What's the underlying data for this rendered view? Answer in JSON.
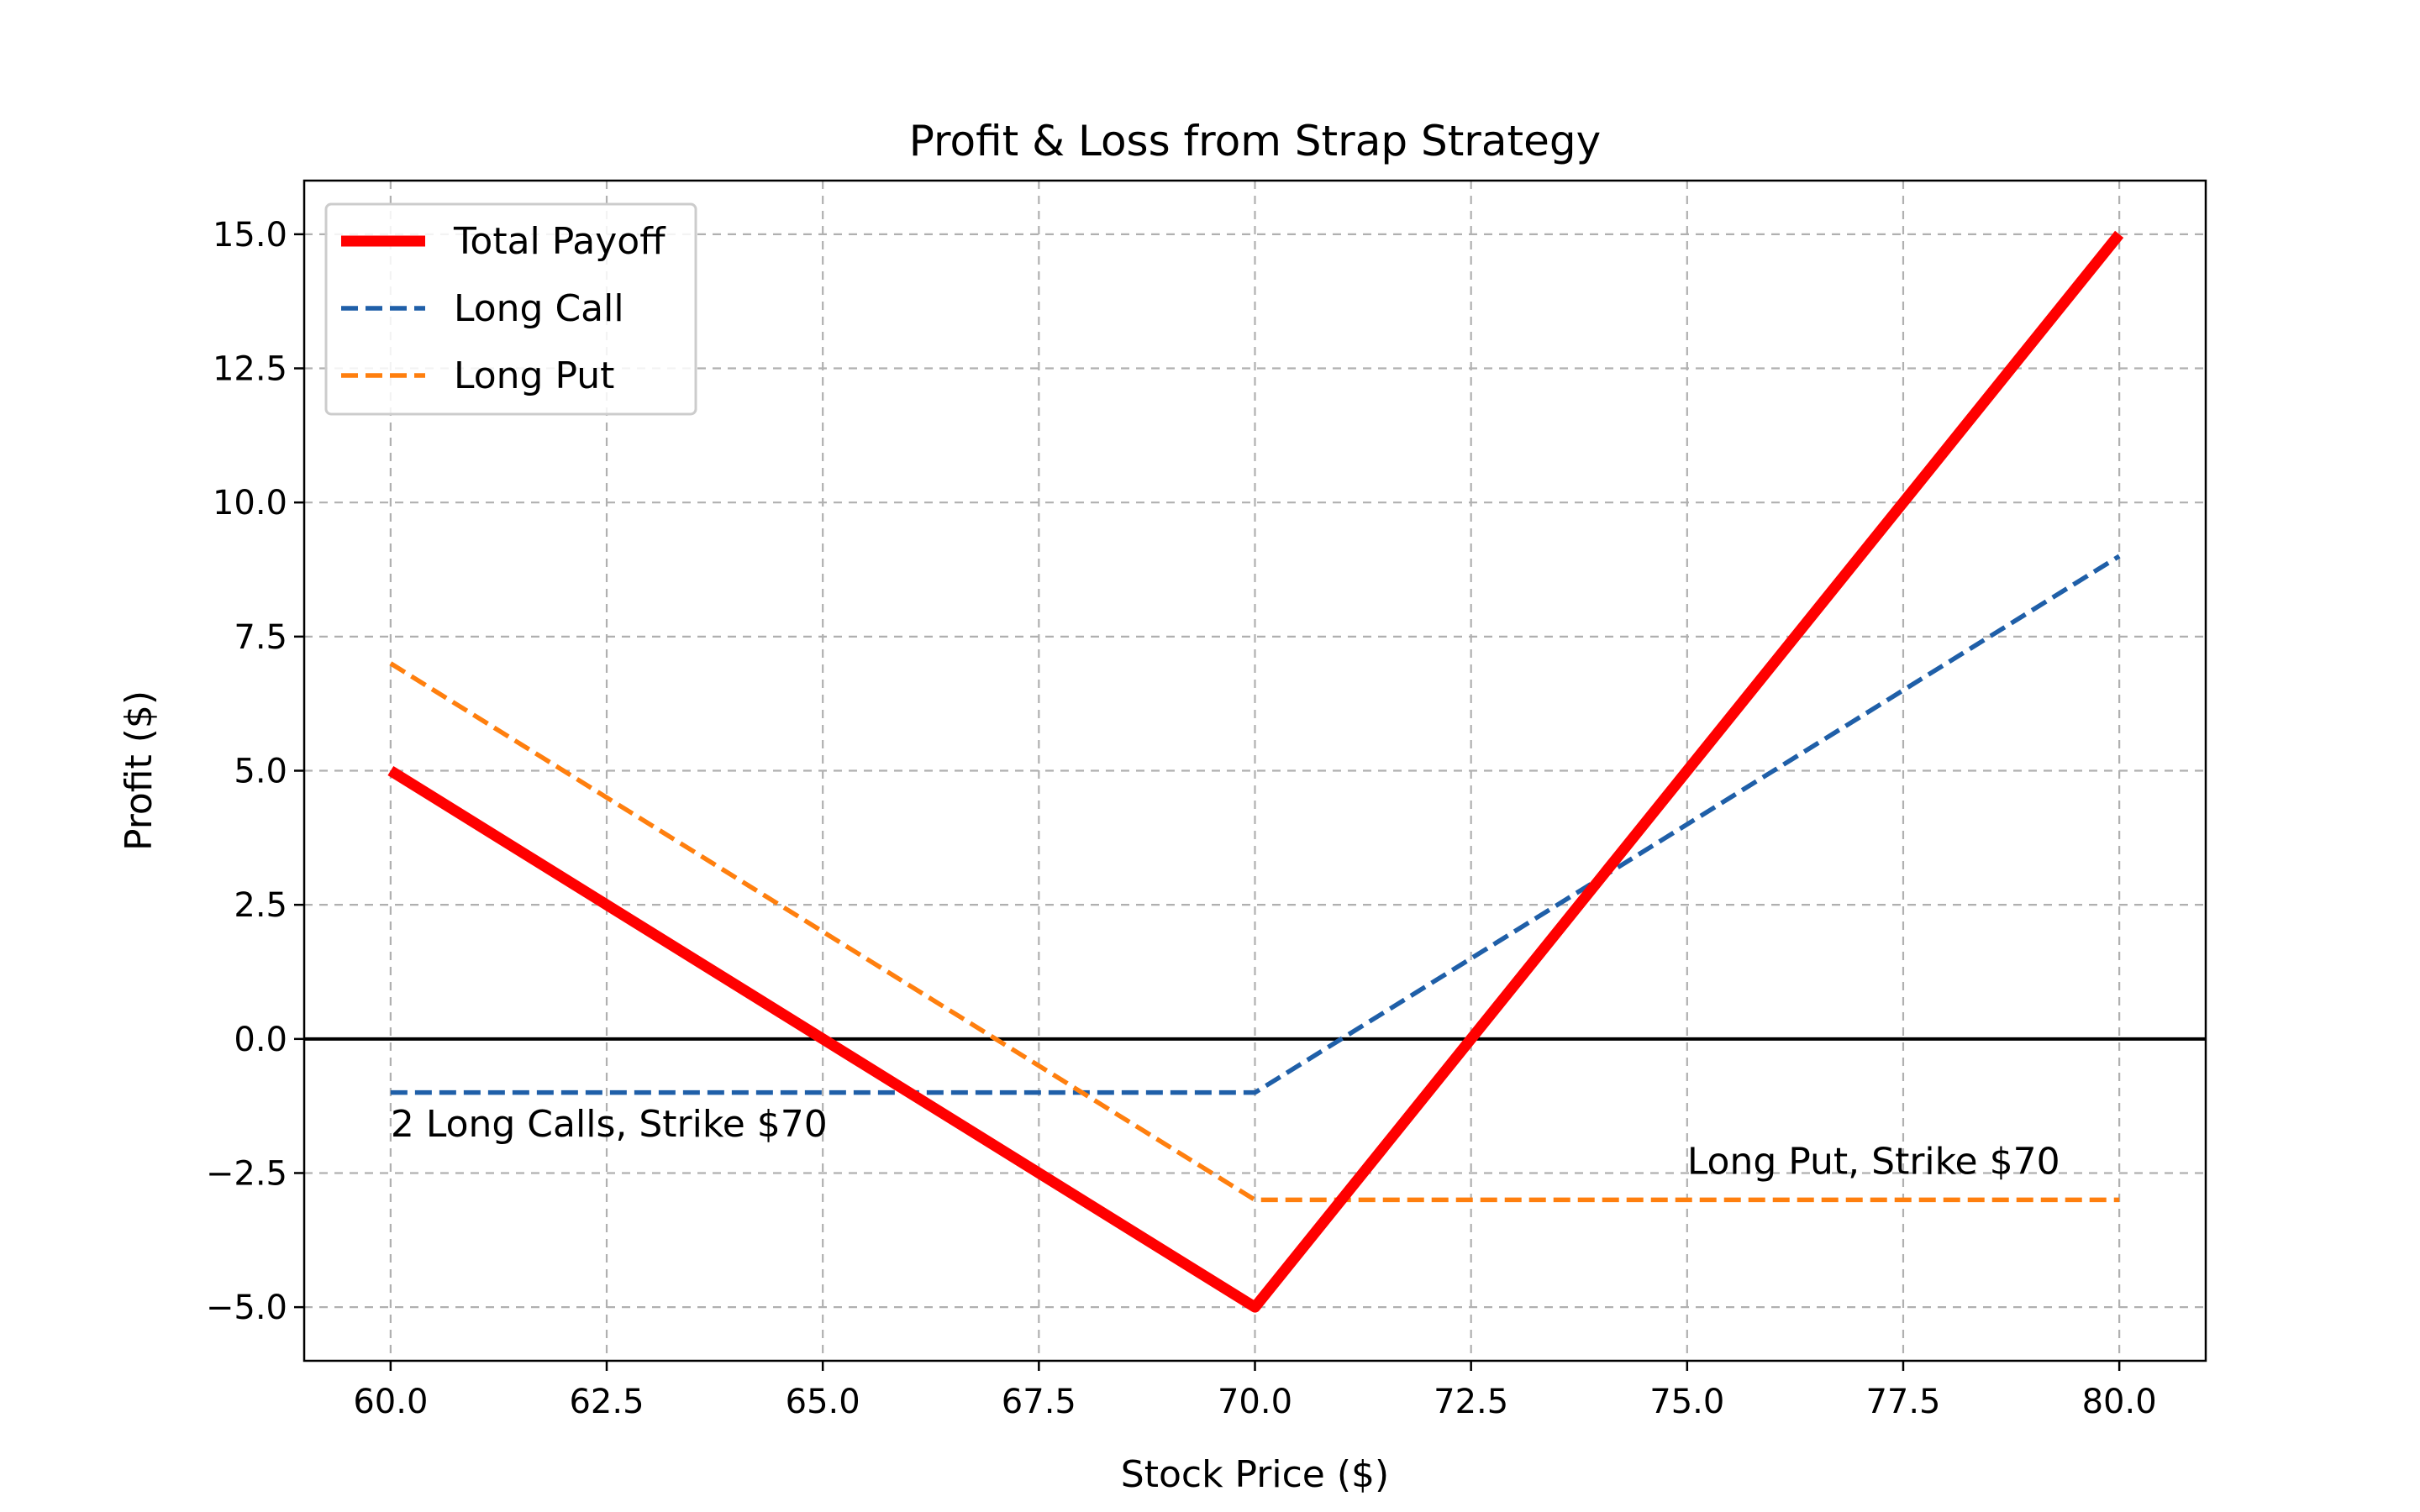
{
  "chart_data": {
    "type": "line",
    "title": "Profit & Loss from Strap Strategy",
    "xlabel": "Stock Price ($)",
    "ylabel": "Profit ($)",
    "xlim": [
      59,
      81
    ],
    "ylim": [
      -6,
      16
    ],
    "grid": true,
    "legend_position": "top-left",
    "xticks": [
      "60.0",
      "62.5",
      "65.0",
      "67.5",
      "70.0",
      "72.5",
      "75.0",
      "77.5",
      "80.0"
    ],
    "xtick_values": [
      60,
      62.5,
      65,
      67.5,
      70,
      72.5,
      75,
      77.5,
      80
    ],
    "yticks": [
      "15.0",
      "12.5",
      "10.0",
      "7.5",
      "5.0",
      "2.5",
      "0.0",
      "−2.5",
      "−5.0"
    ],
    "ytick_values": [
      15,
      12.5,
      10,
      7.5,
      5,
      2.5,
      0,
      -2.5,
      -5
    ],
    "zero_line": 0,
    "series": [
      {
        "name": "Total Payoff",
        "color": "#ff0000",
        "style": "solid",
        "x": [
          60,
          70,
          80
        ],
        "y": [
          5,
          -5,
          15
        ]
      },
      {
        "name": "Long Call",
        "color": "#1f5fa8",
        "style": "dashed",
        "x": [
          60,
          70,
          80
        ],
        "y": [
          -1,
          -1,
          9
        ]
      },
      {
        "name": "Long Put",
        "color": "#ff7f0e",
        "style": "dashed",
        "x": [
          60,
          70,
          80
        ],
        "y": [
          7,
          -3,
          -3
        ]
      }
    ],
    "annotations": [
      {
        "text": "2 Long Calls, Strike $70",
        "x": 60,
        "y": -1.6
      },
      {
        "text": "Long Put, Strike $70",
        "x": 75,
        "y": -2.3
      }
    ]
  }
}
